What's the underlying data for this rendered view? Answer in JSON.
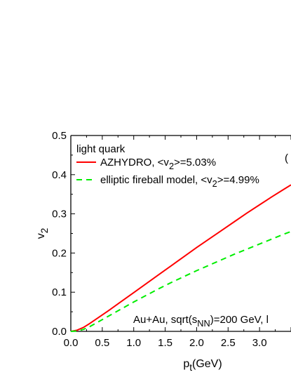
{
  "chart_data": {
    "type": "line",
    "title": "",
    "xlabel": "p_t(GeV)",
    "ylabel": "v_2",
    "xlim": [
      0.0,
      3.5
    ],
    "ylim": [
      0.0,
      0.5
    ],
    "grid": false,
    "legend_position": "top-left",
    "x_ticks": [
      "0.0",
      "0.5",
      "1.0",
      "1.5",
      "2.0",
      "2.5",
      "3.0"
    ],
    "y_ticks": [
      "0.0",
      "0.1",
      "0.2",
      "0.3",
      "0.4",
      "0.5"
    ],
    "legend_title": "light quark",
    "panel_label": "(",
    "annotation": "Au+Au, sqrt(s_NN)=200 GeV, l",
    "series": [
      {
        "name": "AZHYDRO, <v_2>=5.03%",
        "color": "#ff0000",
        "style": "solid",
        "x": [
          0.0,
          0.1,
          0.2,
          0.3,
          0.4,
          0.5,
          0.6,
          0.8,
          1.0,
          1.2,
          1.4,
          1.6,
          1.8,
          2.0,
          2.2,
          2.4,
          2.6,
          2.8,
          3.0,
          3.2,
          3.4,
          3.5
        ],
        "y": [
          0.0,
          0.003,
          0.01,
          0.02,
          0.031,
          0.042,
          0.053,
          0.076,
          0.099,
          0.122,
          0.145,
          0.168,
          0.191,
          0.214,
          0.236,
          0.258,
          0.28,
          0.302,
          0.323,
          0.344,
          0.364,
          0.374
        ]
      },
      {
        "name": "elliptic fireball model, <v_2>=4.99%",
        "color": "#00ee00",
        "style": "dashed",
        "x": [
          0.0,
          0.1,
          0.2,
          0.3,
          0.4,
          0.5,
          0.6,
          0.8,
          1.0,
          1.2,
          1.4,
          1.6,
          1.8,
          2.0,
          2.2,
          2.4,
          2.6,
          2.8,
          3.0,
          3.2,
          3.4,
          3.5
        ],
        "y": [
          0.0,
          0.001,
          0.005,
          0.012,
          0.021,
          0.03,
          0.039,
          0.057,
          0.075,
          0.092,
          0.109,
          0.125,
          0.14,
          0.155,
          0.169,
          0.183,
          0.197,
          0.21,
          0.223,
          0.236,
          0.249,
          0.255
        ]
      }
    ]
  }
}
